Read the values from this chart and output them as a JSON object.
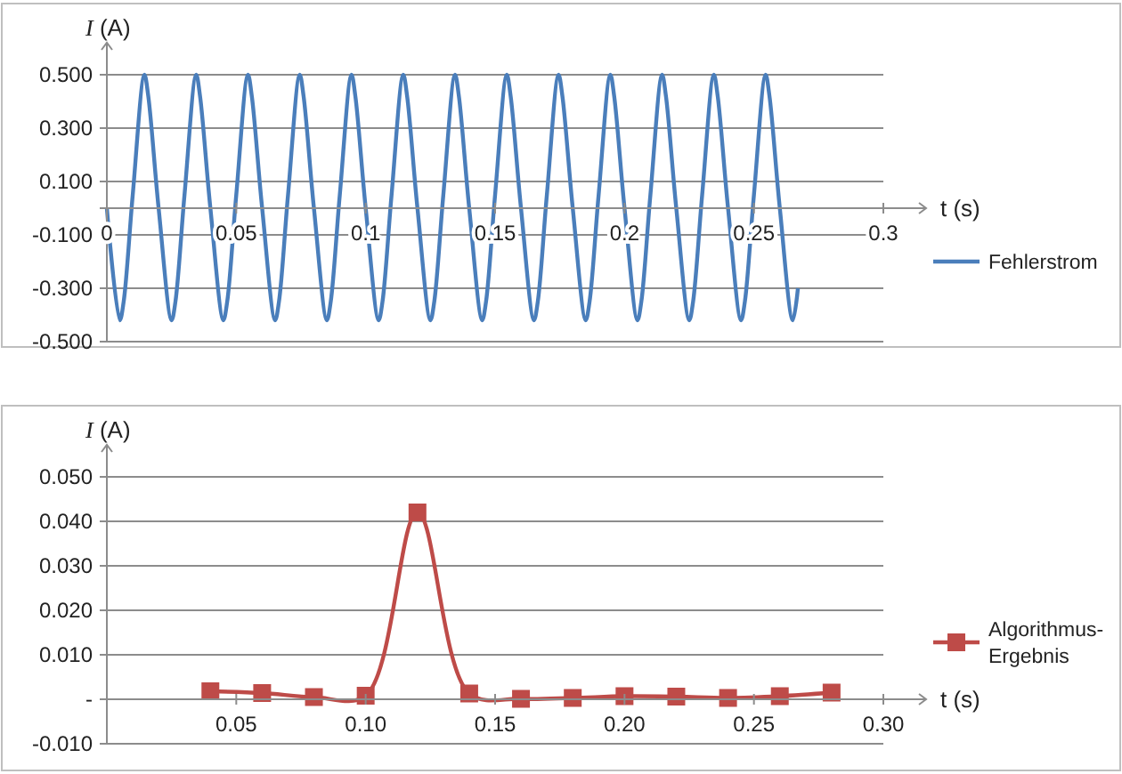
{
  "chart_data": [
    {
      "type": "line",
      "xlabel": "t (s)",
      "ylabel": "I (A)",
      "xlim": [
        0,
        0.3
      ],
      "xticks": [
        0,
        0.05,
        0.1,
        0.15,
        0.2,
        0.25,
        0.3
      ],
      "ylim": [
        -0.5,
        0.5
      ],
      "yticks": [
        {
          "value": -0.5,
          "label": "-0.500"
        },
        {
          "value": -0.3,
          "label": "-0.300"
        },
        {
          "value": -0.1,
          "label": "-0.100"
        },
        {
          "value": 0.1,
          "label": "0.100"
        },
        {
          "value": 0.3,
          "label": "0.300"
        },
        {
          "value": 0.5,
          "label": "0.500"
        }
      ],
      "grid": "y",
      "legend": "right",
      "marker": "none",
      "series": [
        {
          "name": "Fehlerstrom",
          "color": "#4a7ebb",
          "x": [
            0,
            0.005,
            0.0065,
            0.01,
            0.0145,
            0.016,
            0.02,
            0.025,
            0.0265,
            0.03,
            0.0345,
            0.036,
            0.04,
            0.045,
            0.0465,
            0.05,
            0.0545,
            0.056,
            0.06,
            0.065,
            0.0665,
            0.07,
            0.0745,
            0.076,
            0.08,
            0.085,
            0.0865,
            0.09,
            0.0945,
            0.096,
            0.1,
            0.105,
            0.1065,
            0.11,
            0.1145,
            0.116,
            0.12,
            0.125,
            0.1265,
            0.13,
            0.1345,
            0.136,
            0.14,
            0.145,
            0.1465,
            0.15,
            0.1545,
            0.156,
            0.16,
            0.165,
            0.1665,
            0.17,
            0.1745,
            0.176,
            0.18,
            0.185,
            0.1865,
            0.19,
            0.1945,
            0.196,
            0.2,
            0.205,
            0.2065,
            0.21,
            0.2145,
            0.216,
            0.22,
            0.225,
            0.2265,
            0.23,
            0.2345,
            0.236,
            0.24,
            0.245,
            0.2465,
            0.25,
            0.2545,
            0.256,
            0.26,
            0.265,
            0.267
          ],
          "values": [
            0,
            -0.42,
            -0.35,
            0.05,
            0.5,
            0.42,
            0,
            -0.42,
            -0.35,
            0.05,
            0.5,
            0.42,
            0,
            -0.42,
            -0.35,
            0.05,
            0.5,
            0.42,
            0,
            -0.42,
            -0.35,
            0.05,
            0.5,
            0.42,
            0,
            -0.42,
            -0.35,
            0.05,
            0.5,
            0.42,
            0,
            -0.42,
            -0.35,
            0.05,
            0.5,
            0.42,
            0,
            -0.42,
            -0.35,
            0.05,
            0.5,
            0.42,
            0,
            -0.42,
            -0.35,
            0.05,
            0.5,
            0.42,
            0,
            -0.42,
            -0.35,
            0.05,
            0.5,
            0.42,
            0,
            -0.42,
            -0.35,
            0.05,
            0.5,
            0.42,
            0,
            -0.42,
            -0.35,
            0.05,
            0.5,
            0.42,
            0,
            -0.42,
            -0.35,
            0.05,
            0.5,
            0.42,
            0,
            -0.42,
            -0.35,
            0.05,
            0.5,
            0.42,
            0,
            -0.42,
            -0.3
          ]
        }
      ]
    },
    {
      "type": "line",
      "xlabel": "t (s)",
      "ylabel": "I (A)",
      "xlim": [
        0,
        0.3
      ],
      "xticks": [
        {
          "value": 0.05,
          "label": "0.05"
        },
        {
          "value": 0.1,
          "label": "0.10"
        },
        {
          "value": 0.15,
          "label": "0.15"
        },
        {
          "value": 0.2,
          "label": "0.20"
        },
        {
          "value": 0.25,
          "label": "0.25"
        },
        {
          "value": 0.3,
          "label": "0.30"
        }
      ],
      "ylim": [
        -0.01,
        0.05
      ],
      "yticks": [
        {
          "value": -0.01,
          "label": "-0.010"
        },
        {
          "value": 0,
          "label": "-"
        },
        {
          "value": 0.01,
          "label": "0.010"
        },
        {
          "value": 0.02,
          "label": "0.020"
        },
        {
          "value": 0.03,
          "label": "0.030"
        },
        {
          "value": 0.04,
          "label": "0.040"
        },
        {
          "value": 0.05,
          "label": "0.050"
        }
      ],
      "grid": "y",
      "legend": "right",
      "marker": "square",
      "series": [
        {
          "name": "Algorithmus-Ergebnis",
          "color": "#be4b48",
          "x": [
            0.04,
            0.06,
            0.08,
            0.1,
            0.12,
            0.14,
            0.16,
            0.18,
            0.2,
            0.22,
            0.24,
            0.26,
            0.28
          ],
          "values": [
            0.0018,
            0.0014,
            0.0005,
            0.0008,
            0.042,
            0.0013,
            0.0001,
            0.0003,
            0.0007,
            0.0006,
            0.0003,
            0.0007,
            0.0015
          ]
        }
      ]
    }
  ]
}
